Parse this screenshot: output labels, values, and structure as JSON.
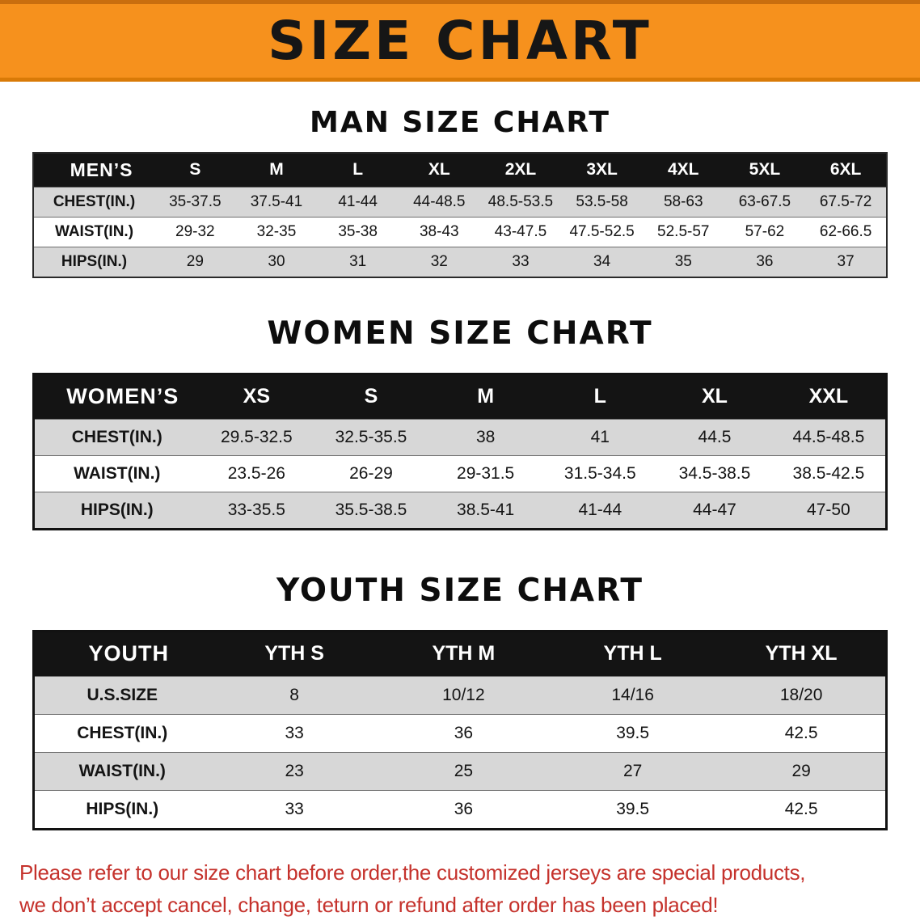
{
  "banner": {
    "title": "SIZE CHART"
  },
  "colors": {
    "banner_bg": "#f6911d",
    "table_header_bg": "#141414",
    "row_stripe": "#d7d7d7",
    "disclaimer_text": "#c5322c"
  },
  "men": {
    "heading": "MAN SIZE CHART",
    "header": [
      "MEN’S",
      "S",
      "M",
      "L",
      "XL",
      "2XL",
      "3XL",
      "4XL",
      "5XL",
      "6XL"
    ],
    "rows": [
      [
        "CHEST(IN.)",
        "35-37.5",
        "37.5-41",
        "41-44",
        "44-48.5",
        "48.5-53.5",
        "53.5-58",
        "58-63",
        "63-67.5",
        "67.5-72"
      ],
      [
        "WAIST(IN.)",
        "29-32",
        "32-35",
        "35-38",
        "38-43",
        "43-47.5",
        "47.5-52.5",
        "52.5-57",
        "57-62",
        "62-66.5"
      ],
      [
        "HIPS(IN.)",
        "29",
        "30",
        "31",
        "32",
        "33",
        "34",
        "35",
        "36",
        "37"
      ]
    ]
  },
  "women": {
    "heading": "WOMEN SIZE CHART",
    "header": [
      "WOMEN’S",
      "XS",
      "S",
      "M",
      "L",
      "XL",
      "XXL"
    ],
    "rows": [
      [
        "CHEST(IN.)",
        "29.5-32.5",
        "32.5-35.5",
        "38",
        "41",
        "44.5",
        "44.5-48.5"
      ],
      [
        "WAIST(IN.)",
        "23.5-26",
        "26-29",
        "29-31.5",
        "31.5-34.5",
        "34.5-38.5",
        "38.5-42.5"
      ],
      [
        "HIPS(IN.)",
        "33-35.5",
        "35.5-38.5",
        "38.5-41",
        "41-44",
        "44-47",
        "47-50"
      ]
    ]
  },
  "youth": {
    "heading": "YOUTH SIZE CHART",
    "header": [
      "YOUTH",
      "YTH S",
      "YTH M",
      "YTH L",
      "YTH XL"
    ],
    "rows": [
      [
        "U.S.SIZE",
        "8",
        "10/12",
        "14/16",
        "18/20"
      ],
      [
        "CHEST(IN.)",
        "33",
        "36",
        "39.5",
        "42.5"
      ],
      [
        "WAIST(IN.)",
        "23",
        "25",
        "27",
        "29"
      ],
      [
        "HIPS(IN.)",
        "33",
        "36",
        "39.5",
        "42.5"
      ]
    ]
  },
  "footer": {
    "line1": "Please refer to our size chart before order,the customized jerseys are special products,",
    "line2": "we don’t accept cancel, change, teturn or refund after order has been placed!"
  }
}
